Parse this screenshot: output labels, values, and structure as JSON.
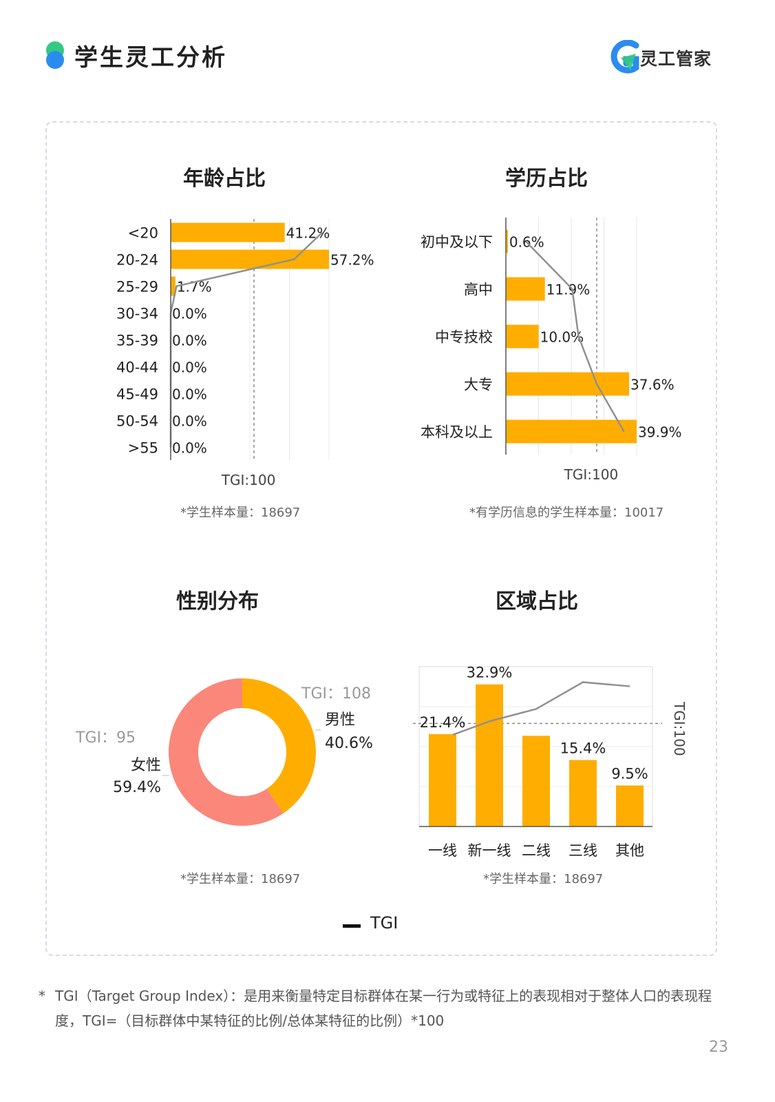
{
  "header": {
    "title": "学生灵工分析",
    "logo_text": "灵工管家",
    "colors": {
      "dot_top": "#33c983",
      "dot_bottom": "#2b8cf0",
      "logo_accent": "#2b8cf0"
    }
  },
  "colors": {
    "bar": "#ffad00",
    "tgi_line": "#909090",
    "female": "#fa877a",
    "male": "#ffad00"
  },
  "chart_data": [
    {
      "id": "age",
      "type": "bar",
      "orientation": "horizontal",
      "title": "年龄占比",
      "categories": [
        "<20",
        "20-24",
        "25-29",
        "30-34",
        "35-39",
        "40-44",
        "45-49",
        "50-54",
        ">55"
      ],
      "series": [
        {
          "values": [
            41.2,
            57.2,
            1.7,
            0.0,
            0.0,
            0.0,
            0.0,
            0.0,
            0.0
          ]
        },
        {
          "name": "TGI",
          "values": [
            182,
            148,
            7,
            0,
            0,
            0,
            0,
            0,
            0
          ]
        }
      ],
      "value_labels": [
        "41.2%",
        "57.2%",
        "1.7%",
        "0.0%",
        "0.0%",
        "0.0%",
        "0.0%",
        "0.0%",
        "0.0%"
      ],
      "reference_label": "TGI:100",
      "note": "学生样本量：18697"
    },
    {
      "id": "education",
      "type": "bar",
      "orientation": "horizontal",
      "title": "学历占比",
      "categories": [
        "初中及以下",
        "高中",
        "中专技校",
        "大专",
        "本科及以上"
      ],
      "series": [
        {
          "values": [
            0.6,
            11.9,
            10.0,
            37.6,
            39.9
          ]
        },
        {
          "name": "TGI",
          "values": [
            22,
            73,
            80,
            100,
            130
          ]
        }
      ],
      "value_labels": [
        "0.6%",
        "11.9%",
        "10.0%",
        "37.6%",
        "39.9%"
      ],
      "reference_label": "TGI:100",
      "note": "有学历信息的学生样本量：10017"
    },
    {
      "id": "gender",
      "type": "pie",
      "title": "性别分布",
      "slices": [
        {
          "label": "男性",
          "value": 40.6,
          "value_label": "40.6%",
          "tgi_label": "TGI：108"
        },
        {
          "label": "女性",
          "value": 59.4,
          "value_label": "59.4%",
          "tgi_label": "TGI：95"
        }
      ],
      "note": "学生样本量：18697"
    },
    {
      "id": "region",
      "type": "bar",
      "title": "区域占比",
      "categories": [
        "一线",
        "新一线",
        "二线",
        "三线",
        "其他"
      ],
      "series": [
        {
          "values": [
            21.4,
            32.9,
            21.0,
            15.4,
            9.5
          ]
        },
        {
          "name": "TGI",
          "values": [
            89,
            102,
            114,
            140,
            136
          ]
        }
      ],
      "value_labels": [
        "21.4%",
        "32.9%",
        "",
        "15.4%",
        "9.5%"
      ],
      "reference_label": "TGI:100",
      "note": "学生样本量：18697"
    }
  ],
  "legend": {
    "label": "TGI"
  },
  "footnote": {
    "star": "*",
    "text": "TGI（Target Group Index）：是用来衡量特定目标群体在某一行为或特征上的表现相对于整体人口的表现程度，TGI=（目标群体中某特征的比例/总体某特征的比例）*100"
  },
  "page_number": "23"
}
